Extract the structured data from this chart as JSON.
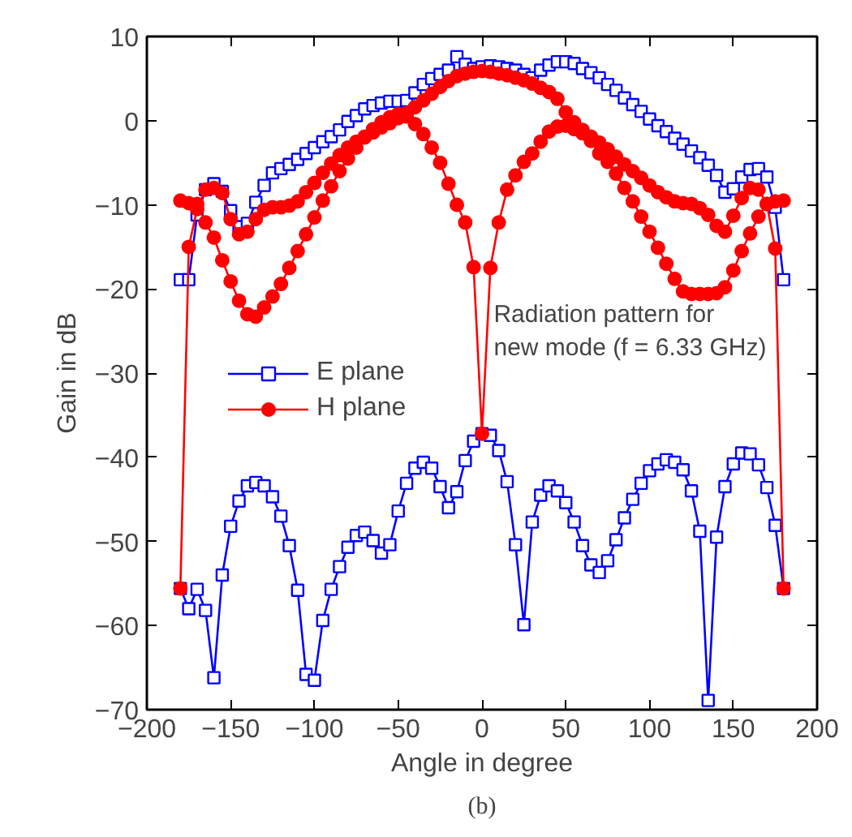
{
  "chart_data": {
    "type": "line",
    "xlabel": "Angle in degree",
    "ylabel": "Gain in dB",
    "x": [
      -180,
      -175,
      -170,
      -165,
      -160,
      -155,
      -150,
      -145,
      -140,
      -135,
      -130,
      -125,
      -120,
      -115,
      -110,
      -105,
      -100,
      -95,
      -90,
      -85,
      -80,
      -75,
      -70,
      -65,
      -60,
      -55,
      -50,
      -45,
      -40,
      -35,
      -30,
      -25,
      -20,
      -15,
      -10,
      -5,
      0,
      5,
      10,
      15,
      20,
      25,
      30,
      35,
      40,
      45,
      50,
      55,
      60,
      65,
      70,
      75,
      80,
      85,
      90,
      95,
      100,
      105,
      110,
      115,
      120,
      125,
      130,
      135,
      140,
      145,
      150,
      155,
      160,
      165,
      170,
      175,
      180
    ],
    "series": [
      {
        "name": "E plane",
        "color": "#0000ff",
        "marker": "square",
        "values": [
          -18.9,
          -18.9,
          -11.2,
          -8.2,
          -7.5,
          -8.4,
          -10.7,
          -12.6,
          -12.2,
          -9.7,
          -7.7,
          -6.2,
          -5.7,
          -5.2,
          -4.6,
          -3.9,
          -3.2,
          -2.5,
          -1.9,
          -1.1,
          -0.1,
          0.6,
          1.4,
          1.8,
          2.1,
          2.3,
          2.3,
          2.4,
          3.3,
          4.3,
          5.0,
          5.5,
          6.0,
          7.6,
          6.7,
          6.2,
          6.4,
          6.5,
          6.4,
          6.2,
          6.0,
          5.5,
          5.1,
          6.0,
          6.6,
          7.0,
          7.0,
          6.8,
          6.2,
          5.7,
          5.1,
          4.3,
          3.6,
          2.7,
          1.9,
          1.1,
          0.2,
          -0.6,
          -1.3,
          -2.1,
          -2.8,
          -3.6,
          -4.4,
          -5.3,
          -6.5,
          -8.5,
          -8.1,
          -6.7,
          -5.8,
          -5.7,
          -6.7,
          -10.3,
          -18.9
        ]
      },
      {
        "color": "#0000ff",
        "marker": "square",
        "values": [
          -55.6,
          -58.0,
          -55.7,
          -58.2,
          -66.2,
          -54.0,
          -48.2,
          -45.2,
          -43.4,
          -43.0,
          -43.4,
          -44.7,
          -47.0,
          -50.5,
          -55.8,
          -65.8,
          -66.5,
          -59.4,
          -55.7,
          -53.0,
          -50.7,
          -49.3,
          -48.9,
          -49.9,
          -51.4,
          -50.4,
          -46.4,
          -43.1,
          -41.3,
          -40.6,
          -41.3,
          -43.5,
          -46.0,
          -44.1,
          -40.4,
          -38.1,
          -37.2,
          -37.4,
          -39.2,
          -42.9,
          -50.4,
          -59.9,
          -47.7,
          -44.5,
          -43.4,
          -44.0,
          -45.4,
          -47.7,
          -50.5,
          -52.8,
          -53.7,
          -52.3,
          -49.8,
          -47.2,
          -45.0,
          -43.1,
          -41.6,
          -40.8,
          -40.3,
          -40.6,
          -41.5,
          -44.0,
          -48.8,
          -68.9,
          -49.5,
          -43.5,
          -40.8,
          -39.5,
          -39.6,
          -40.9,
          -43.6,
          -48.1,
          -55.6
        ]
      },
      {
        "name": "H plane",
        "color": "#ff0000",
        "marker": "circle",
        "values": [
          -55.6,
          -15.0,
          -10.5,
          -8.2,
          -8.0,
          -8.6,
          -11.7,
          -13.5,
          -13.2,
          -11.7,
          -10.6,
          -10.3,
          -10.3,
          -10.1,
          -9.6,
          -8.5,
          -7.4,
          -6.2,
          -5.1,
          -4.1,
          -3.2,
          -2.5,
          -1.9,
          -1.4,
          -0.8,
          -0.3,
          0.3,
          0.9,
          1.6,
          2.4,
          3.2,
          4.0,
          4.7,
          5.3,
          5.6,
          5.8,
          5.9,
          5.8,
          5.6,
          5.4,
          5.1,
          4.8,
          4.4,
          3.9,
          3.4,
          2.6,
          1.0,
          -0.2,
          -1.1,
          -1.9,
          -2.6,
          -3.4,
          -4.3,
          -5.2,
          -6.0,
          -6.8,
          -7.7,
          -8.5,
          -9.1,
          -9.6,
          -9.8,
          -9.9,
          -10.4,
          -11.2,
          -12.5,
          -13.2,
          -11.3,
          -9.2,
          -8.0,
          -8.2,
          -9.9,
          -15.2,
          -55.6
        ]
      },
      {
        "color": "#ff0000",
        "marker": "circle",
        "values": [
          -9.5,
          -9.8,
          -9.9,
          -12.1,
          -13.9,
          -16.6,
          -19.1,
          -21.4,
          -23.0,
          -23.3,
          -22.2,
          -20.9,
          -19.4,
          -17.5,
          -15.5,
          -13.5,
          -11.5,
          -9.5,
          -7.8,
          -6.0,
          -4.5,
          -3.2,
          -2.0,
          -1.0,
          -0.2,
          0.4,
          0.8,
          0.5,
          -0.4,
          -1.6,
          -3.2,
          -5.0,
          -7.5,
          -10.0,
          -12.1,
          -17.4,
          -37.2,
          -17.5,
          -12.1,
          -8.2,
          -6.5,
          -4.9,
          -3.9,
          -2.5,
          -1.3,
          -0.7,
          -0.6,
          -1.0,
          -1.5,
          -2.4,
          -3.9,
          -4.9,
          -6.3,
          -8.0,
          -9.6,
          -11.4,
          -13.2,
          -15.1,
          -17.0,
          -18.8,
          -20.3,
          -20.6,
          -20.6,
          -20.6,
          -20.5,
          -19.8,
          -17.8,
          -15.5,
          -13.4,
          -11.4,
          -9.9,
          -9.6,
          -9.5
        ]
      }
    ],
    "xlim": [
      -200,
      200
    ],
    "xticks": [
      -200,
      -150,
      -100,
      -50,
      0,
      50,
      100,
      150,
      200
    ],
    "ylim": [
      -70,
      10
    ],
    "yticks": [
      -70,
      -60,
      -50,
      -40,
      -30,
      -20,
      -10,
      0,
      10
    ],
    "grid": false,
    "legend": "center left",
    "annotations": [
      {
        "text": "Radiation pattern for\nnew mode (f = 6.33 GHz)",
        "x": 7,
        "y": -25
      },
      "(b)"
    ]
  }
}
